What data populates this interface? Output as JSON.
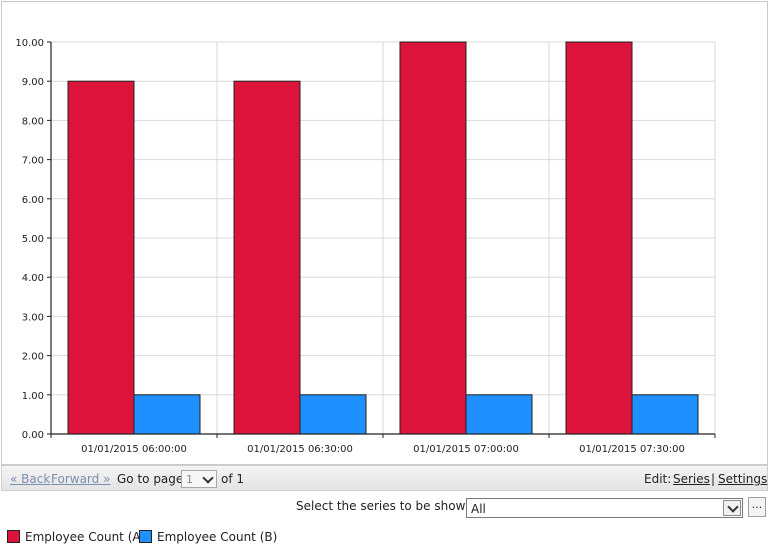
{
  "chart_data": {
    "type": "bar",
    "categories": [
      "01/01/2015 06:00:00",
      "01/01/2015 06:30:00",
      "01/01/2015 07:00:00",
      "01/01/2015 07:30:00"
    ],
    "series": [
      {
        "name": "Employee Count (A)",
        "color": "#dc143c",
        "values": [
          9,
          9,
          10,
          10
        ]
      },
      {
        "name": "Employee Count (B)",
        "color": "#1e90ff",
        "values": [
          1,
          1,
          1,
          1
        ]
      }
    ],
    "ylim": [
      0,
      10
    ],
    "yticks": [
      "0.00",
      "1.00",
      "2.00",
      "3.00",
      "4.00",
      "5.00",
      "6.00",
      "7.00",
      "8.00",
      "9.00",
      "10.00"
    ],
    "title": "",
    "xlabel": "",
    "ylabel": "",
    "grid": true,
    "legend_position": "bottom-left"
  },
  "pager": {
    "back_label": "« Back",
    "forward_label": "Forward »",
    "goto_label": "Go to page",
    "page_value": "1",
    "of_label": "of 1",
    "edit_label": "Edit:",
    "series_link": "Series",
    "separator": "|",
    "settings_link": "Settings"
  },
  "series_selector": {
    "label": "Select the series to be shown:",
    "value": "All",
    "more_button": "..."
  },
  "legend": [
    {
      "label": "Employee Count (A)",
      "color": "#dc143c"
    },
    {
      "label": "Employee Count (B)",
      "color": "#1e90ff"
    }
  ]
}
